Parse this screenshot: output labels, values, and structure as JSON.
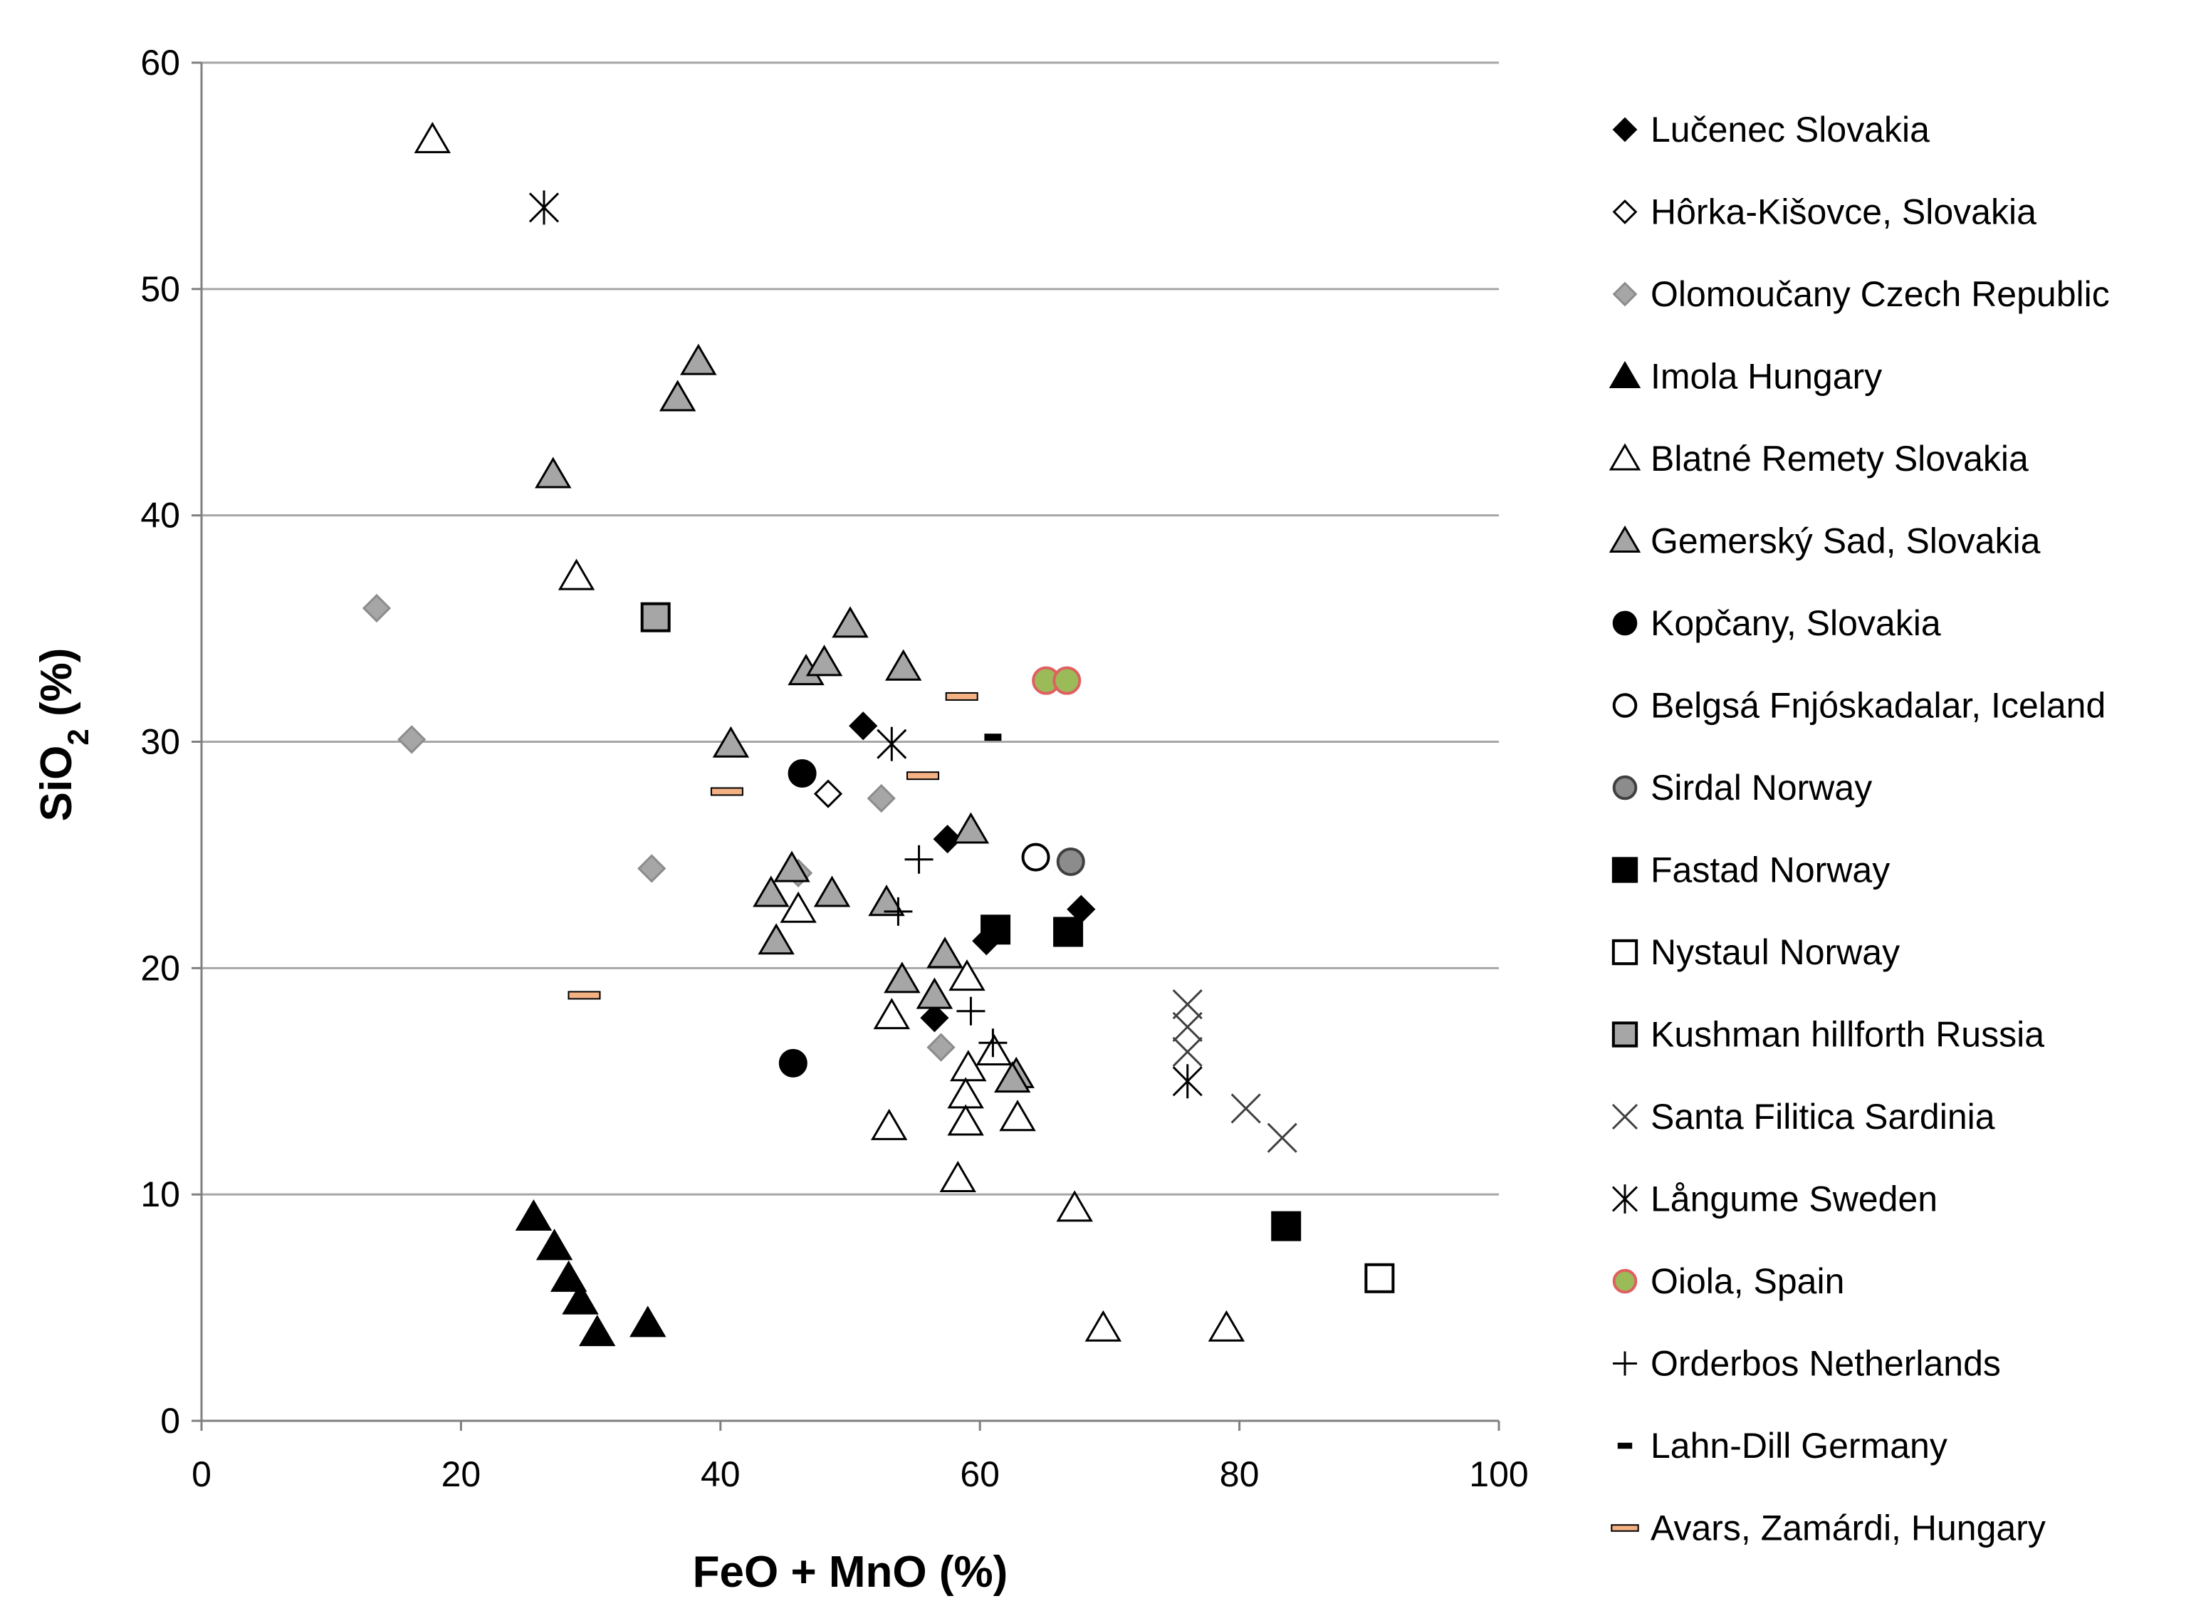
{
  "chart_data": {
    "type": "scatter",
    "title": "",
    "xlabel": "FeO + MnO (%)",
    "ylabel": "SiO",
    "ylabel_sub": "2",
    "ylabel_suffix": " (%)",
    "xlim": [
      0,
      100
    ],
    "ylim": [
      0,
      60
    ],
    "xticks": [
      "0",
      "20",
      "40",
      "60",
      "80",
      "100"
    ],
    "yticks": [
      "0",
      "10",
      "20",
      "30",
      "40",
      "50",
      "60"
    ],
    "grid": "horizontal",
    "legend_position": "right",
    "colors": {
      "grid": "#a6a6a6",
      "gray_fill": "#a6a6a6",
      "sirdal_fill": "#8c8c8c",
      "oiola_fill": "#9bbb59",
      "oiola_edge": "#e06060",
      "avars_fill": "#f4b183"
    },
    "series": [
      {
        "name": "Lučenec Slovakia",
        "marker": "diamond-black",
        "points": [
          [
            51,
            30.7
          ],
          [
            57.5,
            25.7
          ],
          [
            67.8,
            22.6
          ],
          [
            60.5,
            21.2
          ],
          [
            56.5,
            17.8
          ]
        ]
      },
      {
        "name": "Hôrka-Kišovce, Slovakia",
        "marker": "diamond-white",
        "points": [
          [
            48.3,
            27.7
          ]
        ]
      },
      {
        "name": "Olomoučany Czech Republic",
        "marker": "diamond-gray",
        "points": [
          [
            13.5,
            35.9
          ],
          [
            16.2,
            30.1
          ],
          [
            34.7,
            24.4
          ],
          [
            46,
            24.2
          ],
          [
            52.4,
            27.5
          ],
          [
            57,
            16.5
          ]
        ]
      },
      {
        "name": "Imola Hungary",
        "marker": "triangle-black",
        "points": [
          [
            25.6,
            9
          ],
          [
            27.2,
            7.7
          ],
          [
            28.3,
            6.3
          ],
          [
            29.2,
            5.3
          ],
          [
            30.5,
            3.9
          ],
          [
            34.4,
            4.3
          ]
        ]
      },
      {
        "name": "Blatné Remety Slovakia",
        "marker": "triangle-white",
        "points": [
          [
            17.8,
            56.6
          ],
          [
            28.9,
            37.3
          ],
          [
            46,
            22.6
          ],
          [
            53.2,
            17.9
          ],
          [
            53,
            13
          ],
          [
            59,
            19.6
          ],
          [
            59.1,
            15.6
          ],
          [
            58.9,
            14.4
          ],
          [
            58.9,
            13.2
          ],
          [
            61.1,
            16.3
          ],
          [
            62.9,
            13.4
          ],
          [
            58.3,
            10.7
          ],
          [
            67.3,
            9.4
          ],
          [
            69.5,
            4.1
          ],
          [
            79,
            4.1
          ]
        ]
      },
      {
        "name": "Gemerský Sad, Slovakia",
        "marker": "triangle-gray",
        "points": [
          [
            36.7,
            45.2
          ],
          [
            38.3,
            46.8
          ],
          [
            27.1,
            41.8
          ],
          [
            50,
            35.2
          ],
          [
            54.1,
            33.3
          ],
          [
            46.6,
            33.1
          ],
          [
            48,
            33.5
          ],
          [
            40.8,
            29.9
          ],
          [
            45.5,
            24.4
          ],
          [
            48.6,
            23.3
          ],
          [
            43.9,
            23.3
          ],
          [
            44.3,
            21.2
          ],
          [
            52.8,
            22.9
          ],
          [
            59.3,
            26.1
          ],
          [
            54,
            19.5
          ],
          [
            57.3,
            20.6
          ],
          [
            56.5,
            18.8
          ],
          [
            62.8,
            15.3
          ],
          [
            62.5,
            15.1
          ]
        ]
      },
      {
        "name": "Kopčany, Slovakia",
        "marker": "circle-black",
        "points": [
          [
            46.3,
            28.6
          ],
          [
            45.6,
            15.8
          ]
        ]
      },
      {
        "name": "Belgsá Fnjóskadalar, Iceland",
        "marker": "circle-white",
        "points": [
          [
            64.3,
            24.9
          ]
        ]
      },
      {
        "name": "Sirdal Norway",
        "marker": "circle-gray",
        "points": [
          [
            67,
            24.7
          ]
        ]
      },
      {
        "name": "Fastad Norway",
        "marker": "square-black",
        "points": [
          [
            61.2,
            21.7
          ],
          [
            66.8,
            21.6
          ],
          [
            83.6,
            8.6
          ]
        ]
      },
      {
        "name": "Nystaul Norway",
        "marker": "square-white",
        "points": [
          [
            90.8,
            6.3
          ]
        ]
      },
      {
        "name": "Kushman hillforth Russia",
        "marker": "square-gray",
        "points": [
          [
            35,
            35.5
          ]
        ]
      },
      {
        "name": "Santa Filitica Sardinia",
        "marker": "x",
        "points": [
          [
            76,
            18.4
          ],
          [
            76,
            17.4
          ],
          [
            76,
            16.3
          ],
          [
            80.5,
            13.8
          ],
          [
            83.3,
            12.5
          ]
        ]
      },
      {
        "name": "Långume Sweden",
        "marker": "asterisk",
        "points": [
          [
            26.4,
            53.6
          ],
          [
            53.2,
            29.9
          ],
          [
            76,
            15
          ]
        ]
      },
      {
        "name": "Oiola, Spain",
        "marker": "circle-green",
        "points": [
          [
            65.1,
            32.7
          ],
          [
            66.7,
            32.7
          ]
        ]
      },
      {
        "name": "Orderbos Netherlands",
        "marker": "plus",
        "points": [
          [
            55.3,
            24.8
          ],
          [
            53.7,
            22.5
          ],
          [
            59.3,
            18.1
          ],
          [
            61,
            16.7
          ]
        ]
      },
      {
        "name": "Lahn-Dill Germany",
        "marker": "short-dash",
        "points": [
          [
            61,
            30.2
          ]
        ]
      },
      {
        "name": "Avars, Zamárdi, Hungary",
        "marker": "long-dash",
        "points": [
          [
            40.5,
            27.8
          ],
          [
            29.5,
            18.8
          ],
          [
            58.6,
            32
          ],
          [
            55.6,
            28.5
          ]
        ]
      }
    ]
  }
}
